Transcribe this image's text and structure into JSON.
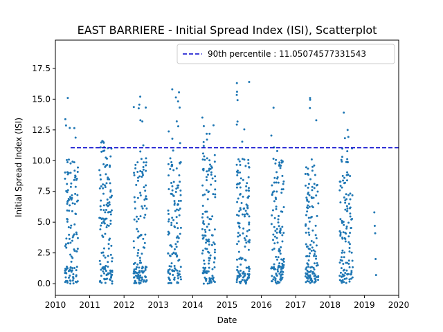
{
  "chart_data": {
    "type": "scatter",
    "title": "EAST BARRIERE - Initial Spread Index (ISI), Scatterplot",
    "xlabel": "Date",
    "ylabel": "Initial Spread Index (ISI)",
    "xlim": [
      2010.0,
      2020.0
    ],
    "ylim": [
      -0.95,
      19.8
    ],
    "x_ticks": [
      2010,
      2011,
      2012,
      2013,
      2014,
      2015,
      2016,
      2017,
      2018,
      2019,
      2020
    ],
    "x_tick_labels": [
      "2010",
      "2011",
      "2012",
      "2013",
      "2014",
      "2015",
      "2016",
      "2017",
      "2018",
      "2019",
      "2020"
    ],
    "y_ticks": [
      0.0,
      2.5,
      5.0,
      7.5,
      10.0,
      12.5,
      15.0,
      17.5
    ],
    "y_tick_labels": [
      "0.0",
      "2.5",
      "5.0",
      "7.5",
      "10.0",
      "12.5",
      "15.0",
      "17.5"
    ],
    "grid": false,
    "point_color": "#1f77b4",
    "seasons": [
      {
        "year": 2010,
        "x_range": [
          2010.28,
          2010.66
        ],
        "count": 130,
        "max": 15.1
      },
      {
        "year": 2011,
        "x_range": [
          2011.28,
          2011.66
        ],
        "count": 140,
        "max": 11.6
      },
      {
        "year": 2012,
        "x_range": [
          2012.28,
          2012.66
        ],
        "count": 140,
        "max": 15.2
      },
      {
        "year": 2013,
        "x_range": [
          2013.28,
          2013.66
        ],
        "count": 140,
        "max": 15.8
      },
      {
        "year": 2014,
        "x_range": [
          2014.28,
          2014.66
        ],
        "count": 140,
        "max": 13.5
      },
      {
        "year": 2015,
        "x_range": [
          2015.28,
          2015.66
        ],
        "count": 150,
        "max": 16.4
      },
      {
        "year": 2016,
        "x_range": [
          2016.28,
          2016.66
        ],
        "count": 140,
        "max": 14.3
      },
      {
        "year": 2017,
        "x_range": [
          2017.28,
          2017.66
        ],
        "count": 140,
        "max": 15.1
      },
      {
        "year": 2018,
        "x_range": [
          2018.28,
          2018.66
        ],
        "count": 130,
        "max": 13.9
      },
      {
        "year": 2019,
        "x_range": [
          2019.29,
          2019.34
        ],
        "count": 5,
        "values": [
          5.8,
          4.7,
          4.1,
          2.0,
          0.7
        ]
      }
    ],
    "reference_line": {
      "value": 11.05074577331543,
      "color": "#0000cc",
      "style": "dashed"
    },
    "legend": {
      "placement": "top-right",
      "entries": [
        {
          "label": "90th percentile : 11.05074577331543",
          "color": "#0000cc",
          "style": "dashed"
        }
      ]
    }
  }
}
